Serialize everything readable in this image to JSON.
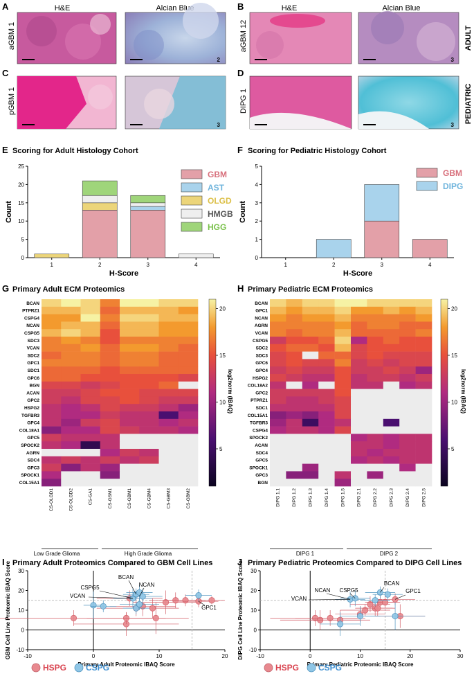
{
  "histology": {
    "A": {
      "letter": "A",
      "left_label": "H&E",
      "right_label": "Alcian Blue",
      "row_label": "aGBM 1",
      "score": "2"
    },
    "B": {
      "letter": "B",
      "left_label": "H&E",
      "right_label": "Alcian Blue",
      "row_label": "aGBM 12",
      "score": "3",
      "side_label": "ADULT"
    },
    "C": {
      "letter": "C",
      "row_label": "pGBM 1",
      "score": "3"
    },
    "D": {
      "letter": "D",
      "row_label": "DIPG 1",
      "score": "3",
      "side_label": "PEDIATRIC"
    }
  },
  "panelE": {
    "letter": "E",
    "title": "Scoring for Adult Histology Cohort"
  },
  "panelF": {
    "letter": "F",
    "title": "Scoring for Pediatric Histology Cohort"
  },
  "panelG": {
    "letter": "G",
    "title": "Primary Adult ECM Proteomics",
    "group_labels": [
      "Low Grade Glioma",
      "High Grade Glioma"
    ],
    "colorbar_label": "log2norm (IBAQ)",
    "colorbar_ticks": [
      "20",
      "15",
      "10",
      "5"
    ]
  },
  "panelH": {
    "letter": "H",
    "title": "Primary Pediatric ECM Proteomics",
    "group_labels": [
      "DIPG 1",
      "DIPG 2"
    ],
    "colorbar_label": "log2norm (IBAQ)",
    "colorbar_ticks": [
      "20",
      "15",
      "10",
      "5"
    ]
  },
  "panelI": {
    "letter": "I",
    "title": "Primary Adult Proteomics Compared to GBM Cell Lines"
  },
  "panelJ": {
    "letter": "J",
    "title": "Primary Pediatric Proteomics Compared to DIPG Cell Lines"
  },
  "legend": {
    "hspg": "HSPG",
    "cspg": "CSPG"
  },
  "colors": {
    "gbm": "#e3a0a8",
    "ast": "#a9d3ec",
    "olgd": "#ecd57a",
    "hmgb": "#efefef",
    "hgg": "#9fd57a",
    "hspg": "#e8898f",
    "cspg": "#8fc6e6",
    "legend_hspg": "#d9434f",
    "legend_cspg": "#3d8fd1"
  },
  "chart_data": [
    {
      "type": "bar",
      "id": "E",
      "stacked": true,
      "title": "Scoring for Adult Histology Cohort",
      "xlabel": "H-Score",
      "ylabel": "Count",
      "categories": [
        "1",
        "2",
        "3",
        "4"
      ],
      "ylim": [
        0,
        25
      ],
      "yticks": [
        "0",
        "5",
        "10",
        "15",
        "20",
        "25"
      ],
      "series": [
        {
          "name": "GBM",
          "values": [
            0,
            13,
            13,
            0
          ]
        },
        {
          "name": "AST",
          "values": [
            0,
            0,
            1,
            0
          ]
        },
        {
          "name": "OLGD",
          "values": [
            1,
            2,
            0,
            0
          ]
        },
        {
          "name": "HMGB",
          "values": [
            0,
            2,
            1,
            1
          ]
        },
        {
          "name": "HGG",
          "values": [
            0,
            4,
            2,
            0
          ]
        }
      ]
    },
    {
      "type": "bar",
      "id": "F",
      "stacked": true,
      "title": "Scoring for Pediatric Histology Cohort",
      "xlabel": "H-Score",
      "ylabel": "Count",
      "categories": [
        "1",
        "2",
        "3",
        "4"
      ],
      "ylim": [
        0,
        5
      ],
      "yticks": [
        "0",
        "1",
        "2",
        "3",
        "4",
        "5"
      ],
      "series": [
        {
          "name": "GBM",
          "values": [
            0,
            0,
            2,
            1
          ]
        },
        {
          "name": "DIPG",
          "values": [
            0,
            1,
            2,
            0
          ]
        }
      ]
    },
    {
      "type": "heatmap",
      "id": "G",
      "title": "Primary Adult ECM Proteomics",
      "rows": [
        "BCAN",
        "PTPRZ1",
        "CSPG4",
        "NCAN",
        "CSPG5",
        "SDC3",
        "VCAN",
        "SDC2",
        "GPC1",
        "SDC1",
        "GPC6",
        "BGN",
        "ACAN",
        "GPC2",
        "HSPG2",
        "TGFBR3",
        "GPC4",
        "COL18A1",
        "GPC5",
        "SPOCK2",
        "AGRN",
        "SDC4",
        "GPC3",
        "SPOCK1",
        "COL15A1"
      ],
      "columns": [
        "CS-OLGD1",
        "CS-OLGD2",
        "CS-GA1",
        "CS-GSM1",
        "CS-GBM1",
        "CS-GBM4",
        "CS-GBM3",
        "CS-GBM2"
      ],
      "values": [
        [
          20,
          21,
          20,
          17,
          21,
          21,
          20,
          20
        ],
        [
          19,
          19,
          20,
          16,
          19,
          19,
          19,
          18
        ],
        [
          18,
          18,
          21,
          17,
          20,
          20,
          19,
          19
        ],
        [
          18,
          19,
          19,
          16,
          19,
          19,
          18,
          18
        ],
        [
          19,
          20,
          19,
          15,
          19,
          19,
          18,
          18
        ],
        [
          17,
          18,
          17,
          15,
          17,
          17,
          17,
          17
        ],
        [
          17,
          17,
          18,
          16,
          18,
          18,
          17,
          16
        ],
        [
          16,
          17,
          17,
          16,
          17,
          17,
          16,
          16
        ],
        [
          17,
          17,
          17,
          16,
          17,
          17,
          16,
          16
        ],
        [
          16,
          16,
          16,
          15,
          16,
          16,
          16,
          16
        ],
        [
          16,
          16,
          15,
          15,
          15,
          15,
          15,
          14
        ],
        [
          14,
          14,
          13,
          14,
          15,
          15,
          16,
          null
        ],
        [
          13,
          13,
          14,
          15,
          15,
          14,
          14,
          14
        ],
        [
          13,
          12,
          14,
          14,
          15,
          14,
          13,
          13
        ],
        [
          12,
          11,
          12,
          14,
          13,
          13,
          12,
          10
        ],
        [
          12,
          11,
          11,
          13,
          12,
          12,
          6,
          11
        ],
        [
          12,
          10,
          13,
          14,
          12,
          12,
          11,
          12
        ],
        [
          9,
          11,
          11,
          14,
          13,
          12,
          12,
          11
        ],
        [
          13,
          12,
          12,
          12,
          null,
          null,
          null,
          null
        ],
        [
          12,
          11,
          4,
          12,
          null,
          null,
          null,
          null
        ],
        [
          null,
          null,
          null,
          11,
          13,
          12,
          null,
          null
        ],
        [
          12,
          13,
          12,
          13,
          12,
          13,
          null,
          null
        ],
        [
          13,
          9,
          12,
          10,
          null,
          null,
          null,
          null
        ],
        [
          11,
          null,
          null,
          9,
          null,
          null,
          null,
          null
        ],
        [
          9,
          null,
          null,
          null,
          null,
          null,
          null,
          null
        ]
      ],
      "color_range": [
        1,
        21
      ]
    },
    {
      "type": "heatmap",
      "id": "H",
      "title": "Primary Pediatric ECM Proteomics",
      "rows": [
        "BCAN",
        "GPC1",
        "NCAN",
        "AGRN",
        "VCAN",
        "CSPG5",
        "SDC2",
        "SDC3",
        "GPC6",
        "GPC4",
        "HSPG2",
        "COL18A2",
        "GPC2",
        "PTPRZ1",
        "SDC1",
        "COL15A1",
        "TGFBR3",
        "CSPG4",
        "SPOCK2",
        "ACAN",
        "SDC4",
        "GPC5",
        "SPOCK1",
        "GPC3",
        "BGN"
      ],
      "columns": [
        "DIPG 1.1",
        "DIPG 1.2",
        "DIPG 1.3",
        "DIPG 1.4",
        "DIPG 1.5",
        "DIPG 2.1",
        "DIPG 2.2",
        "DIPG 2.3",
        "DIPG 2.4",
        "DIPG 2.5"
      ],
      "values": [
        [
          20,
          19,
          20,
          20,
          21,
          21,
          20,
          20,
          20,
          20
        ],
        [
          19,
          18,
          19,
          19,
          20,
          18,
          18,
          19,
          18,
          19
        ],
        [
          18,
          17,
          18,
          18,
          19,
          17,
          17,
          17,
          17,
          18
        ],
        [
          17,
          17,
          17,
          17,
          18,
          16,
          17,
          17,
          16,
          16
        ],
        [
          17,
          16,
          17,
          17,
          19,
          16,
          16,
          16,
          16,
          17
        ],
        [
          13,
          15,
          15,
          16,
          20,
          11,
          15,
          16,
          15,
          15
        ],
        [
          15,
          16,
          16,
          15,
          19,
          14,
          15,
          15,
          15,
          15
        ],
        [
          14,
          15,
          null,
          16,
          16,
          14,
          15,
          14,
          14,
          14
        ],
        [
          14,
          15,
          14,
          14,
          17,
          13,
          14,
          13,
          14,
          14
        ],
        [
          13,
          14,
          13,
          13,
          15,
          13,
          13,
          14,
          13,
          10
        ],
        [
          14,
          13,
          12,
          12,
          15,
          12,
          13,
          13,
          12,
          13
        ],
        [
          12,
          null,
          11,
          null,
          15,
          12,
          12,
          null,
          11,
          12
        ],
        [
          13,
          13,
          13,
          13,
          15,
          null,
          null,
          null,
          null,
          null
        ],
        [
          13,
          12,
          12,
          13,
          14,
          null,
          null,
          null,
          null,
          null
        ],
        [
          12,
          12,
          12,
          12,
          14,
          null,
          null,
          null,
          null,
          null
        ],
        [
          9,
          10,
          9,
          11,
          14,
          null,
          null,
          null,
          null,
          null
        ],
        [
          10,
          12,
          5,
          11,
          12,
          null,
          null,
          6,
          null,
          null
        ],
        [
          11,
          12,
          12,
          11,
          14,
          null,
          null,
          null,
          null,
          null
        ],
        [
          null,
          null,
          null,
          null,
          null,
          11,
          12,
          11,
          12,
          12
        ],
        [
          null,
          null,
          null,
          null,
          null,
          12,
          12,
          11,
          12,
          12
        ],
        [
          null,
          null,
          null,
          null,
          null,
          12,
          11,
          12,
          12,
          12
        ],
        [
          null,
          null,
          null,
          null,
          null,
          11,
          12,
          11,
          12,
          12
        ],
        [
          null,
          null,
          10,
          null,
          null,
          null,
          null,
          null,
          11,
          null
        ],
        [
          null,
          9,
          9,
          null,
          12,
          null,
          10,
          null,
          null,
          null
        ],
        [
          null,
          null,
          null,
          null,
          10,
          null,
          null,
          null,
          null,
          null
        ]
      ],
      "color_range": [
        1,
        21
      ]
    },
    {
      "type": "scatter",
      "id": "I",
      "title": "Primary Adult Proteomics Compared to GBM Cell Lines",
      "xlabel": "Primary Adult Proteomic IBAQ Score",
      "ylabel": "GBM Cell Line Proteomic IBAQ Score",
      "xlim": [
        -10,
        20
      ],
      "ylim": [
        -10,
        30
      ],
      "xticks": [
        "-10",
        "0",
        "10",
        "20"
      ],
      "yticks": [
        "-10",
        "0",
        "10",
        "20",
        "30"
      ],
      "reference_x": 15,
      "reference_y": 15,
      "series": [
        {
          "name": "HSPG",
          "points": [
            {
              "x": -3,
              "y": 6,
              "xerr": 12,
              "yerr": 4
            },
            {
              "x": 5,
              "y": 3,
              "xerr": 8,
              "yerr": 6
            },
            {
              "x": 5,
              "y": 6,
              "xerr": 6,
              "yerr": 3
            },
            {
              "x": 6.5,
              "y": 11,
              "xerr": 6,
              "yerr": 4
            },
            {
              "x": 7.5,
              "y": 12,
              "xerr": 5,
              "yerr": 5
            },
            {
              "x": 9,
              "y": 11,
              "xerr": 4,
              "yerr": 5
            },
            {
              "x": 11,
              "y": 14,
              "xerr": 5,
              "yerr": 6
            },
            {
              "x": 12.5,
              "y": 15,
              "xerr": 4,
              "yerr": 4
            },
            {
              "x": 14,
              "y": 15,
              "xerr": 3,
              "yerr": 3
            },
            {
              "x": 16,
              "y": 14.5,
              "xerr": 3,
              "yerr": 3
            },
            {
              "x": 18,
              "y": 15,
              "xerr": 2,
              "yerr": 2
            },
            {
              "x": 5.5,
              "y": 16,
              "xerr": 5,
              "yerr": 4
            },
            {
              "x": 9.5,
              "y": 6,
              "xerr": 5,
              "yerr": 8
            }
          ]
        },
        {
          "name": "CSPG",
          "points": [
            {
              "x": 0,
              "y": 12.5,
              "xerr": 1.5,
              "yerr": 7
            },
            {
              "x": 1.5,
              "y": 12,
              "xerr": 2,
              "yerr": 3
            },
            {
              "x": 6,
              "y": 16,
              "xerr": 3,
              "yerr": 5
            },
            {
              "x": 6.5,
              "y": 18,
              "xerr": 2,
              "yerr": 3
            },
            {
              "x": 7,
              "y": 19,
              "xerr": 2,
              "yerr": 4
            },
            {
              "x": 7.5,
              "y": 17,
              "xerr": 3,
              "yerr": 4
            },
            {
              "x": 6.5,
              "y": 11,
              "xerr": 2,
              "yerr": 3
            },
            {
              "x": 16,
              "y": 17.5,
              "xerr": 2,
              "yerr": 3
            },
            {
              "x": 7,
              "y": 13,
              "xerr": 3,
              "yerr": 3
            }
          ]
        }
      ],
      "annotations": [
        "CSPG5",
        "BCAN",
        "NCAN",
        "VCAN",
        "GPC1"
      ]
    },
    {
      "type": "scatter",
      "id": "J",
      "title": "Primary Pediatric Proteomics Compared to DIPG Cell Lines",
      "xlabel": "Primary Pediatric Proteomic IBAQ Score",
      "ylabel": "DIPG Cell Line Proteomic IBAQ Score",
      "xlim": [
        -10,
        30
      ],
      "ylim": [
        -10,
        30
      ],
      "xticks": [
        "-10",
        "0",
        "10",
        "20",
        "30"
      ],
      "yticks": [
        "-10",
        "0",
        "10",
        "20",
        "30"
      ],
      "reference_x": 15,
      "reference_y": 15,
      "series": [
        {
          "name": "HSPG",
          "points": [
            {
              "x": 1,
              "y": 6,
              "xerr": 9,
              "yerr": 4
            },
            {
              "x": 2,
              "y": 5,
              "xerr": 8,
              "yerr": 5
            },
            {
              "x": 4,
              "y": 6,
              "xerr": 7,
              "yerr": 4
            },
            {
              "x": 6,
              "y": 5,
              "xerr": 6,
              "yerr": 5
            },
            {
              "x": 10,
              "y": 8,
              "xerr": 5,
              "yerr": 4
            },
            {
              "x": 11,
              "y": 10,
              "xerr": 5,
              "yerr": 3
            },
            {
              "x": 12,
              "y": 13,
              "xerr": 4,
              "yerr": 4
            },
            {
              "x": 13,
              "y": 11,
              "xerr": 4,
              "yerr": 4
            },
            {
              "x": 14,
              "y": 14,
              "xerr": 3,
              "yerr": 3
            },
            {
              "x": 15,
              "y": 14,
              "xerr": 3,
              "yerr": 3
            },
            {
              "x": 17,
              "y": 15.5,
              "xerr": 4,
              "yerr": 3
            },
            {
              "x": 18,
              "y": 7,
              "xerr": 5,
              "yerr": 6
            },
            {
              "x": 13.5,
              "y": 11,
              "xerr": 3,
              "yerr": 4
            }
          ]
        },
        {
          "name": "CSPG",
          "points": [
            {
              "x": 6,
              "y": 3,
              "xerr": 4,
              "yerr": 6
            },
            {
              "x": 8,
              "y": 15.5,
              "xerr": 3,
              "yerr": 4
            },
            {
              "x": 9,
              "y": 16,
              "xerr": 3,
              "yerr": 4
            },
            {
              "x": 13,
              "y": 15,
              "xerr": 3,
              "yerr": 3
            },
            {
              "x": 14,
              "y": 19,
              "xerr": 3,
              "yerr": 3
            },
            {
              "x": 15.5,
              "y": 18,
              "xerr": 3,
              "yerr": 3
            },
            {
              "x": 17,
              "y": 7,
              "xerr": 6,
              "yerr": 7
            },
            {
              "x": 10,
              "y": 7,
              "xerr": 4,
              "yerr": 5
            }
          ]
        }
      ],
      "annotations": [
        "NCAN",
        "CSPG5",
        "BCAN",
        "GPC1",
        "VCAN"
      ]
    }
  ]
}
